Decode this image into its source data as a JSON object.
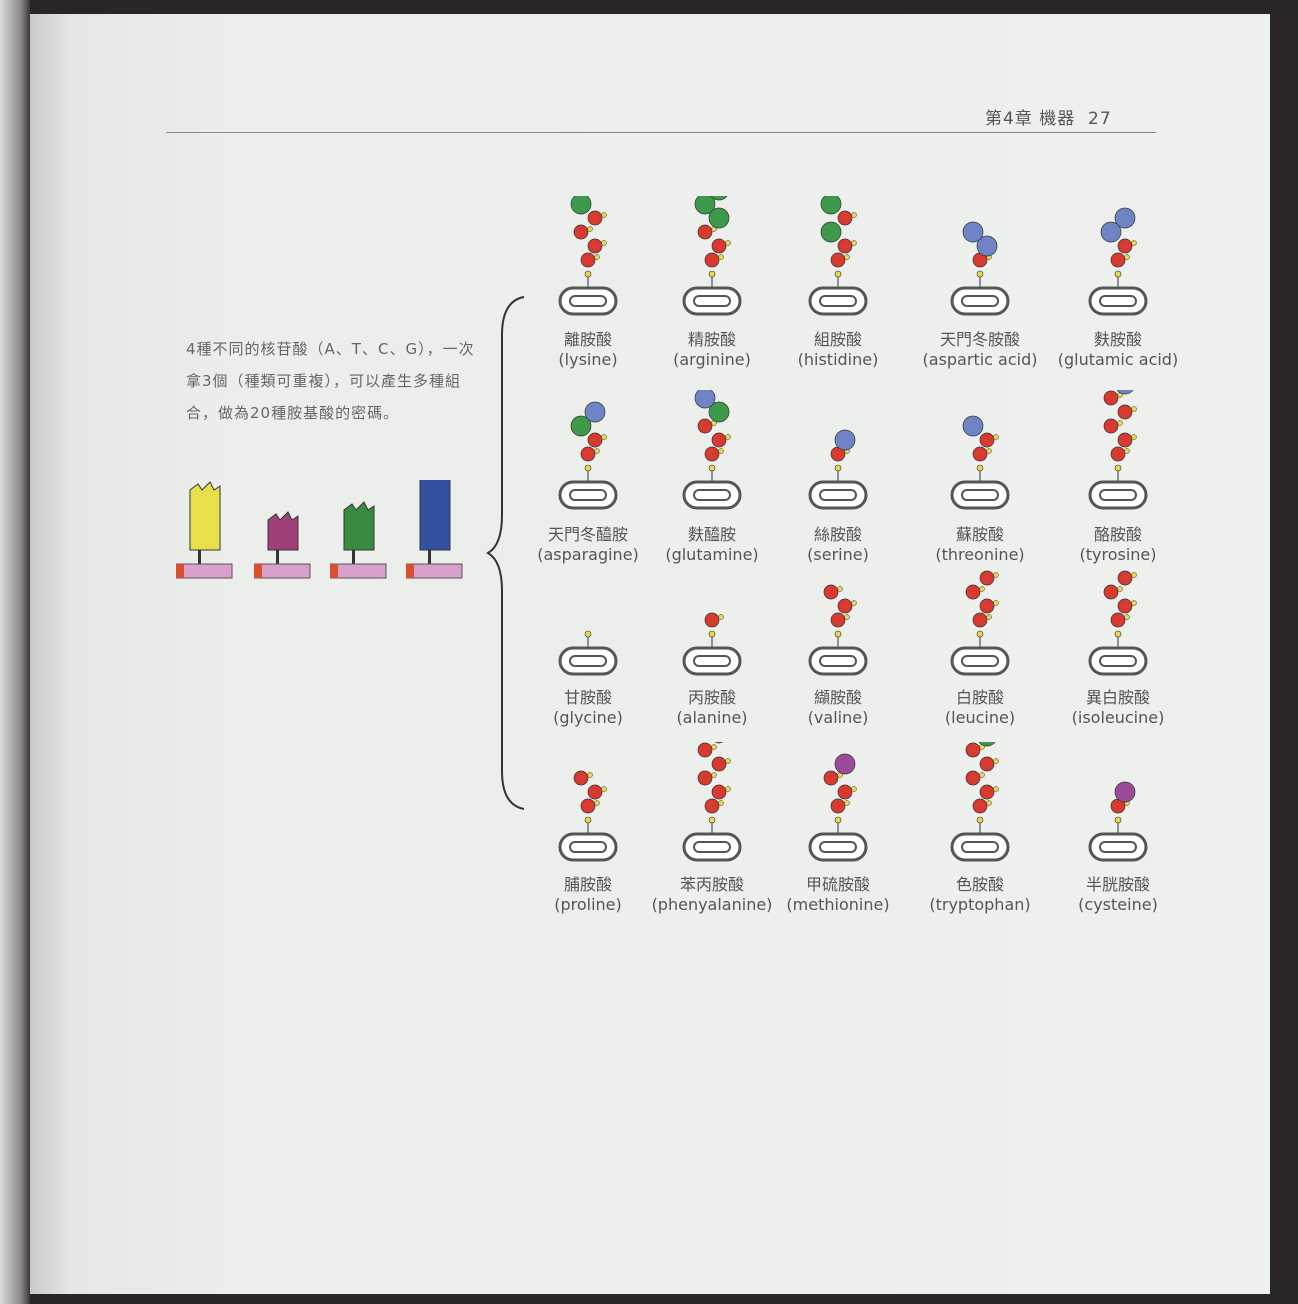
{
  "header": {
    "chapter": "第4章 機器",
    "page_number": "27"
  },
  "intro": "4種不同的核苷酸（A、T、C、G），一次拿3個（種類可重複），可以產生多種組合，做為20種胺基酸的密碼。",
  "colors": {
    "red": "#d83a30",
    "green": "#3d9a4a",
    "blue": "#6f84c4",
    "purple": "#9c4a9a",
    "yellow": "#e8d84a",
    "ring": "#555555"
  },
  "nucleotides": [
    {
      "color": "#e8e04a"
    },
    {
      "color": "#a0407a"
    },
    {
      "color": "#3a8a40"
    },
    {
      "color": "#3450a0"
    }
  ],
  "amino_acids": [
    {
      "zh": "離胺酸",
      "en": "(lysine)",
      "chain": [
        "red",
        "red",
        "red",
        "red",
        "green"
      ]
    },
    {
      "zh": "精胺酸",
      "en": "(arginine)",
      "chain": [
        "red",
        "red",
        "red",
        "green",
        "green",
        "green"
      ]
    },
    {
      "zh": "組胺酸",
      "en": "(histidine)",
      "chain": [
        "red",
        "red",
        "green",
        "red",
        "green"
      ]
    },
    {
      "zh": "天門冬胺酸",
      "en": "(aspartic acid)",
      "chain": [
        "red",
        "blue",
        "blue"
      ]
    },
    {
      "zh": "麩胺酸",
      "en": "(glutamic acid)",
      "chain": [
        "red",
        "red",
        "blue",
        "blue"
      ]
    },
    {
      "zh": "天門冬醯胺",
      "en": "(asparagine)",
      "chain": [
        "red",
        "red",
        "green",
        "blue"
      ]
    },
    {
      "zh": "麩醯胺",
      "en": "(glutamine)",
      "chain": [
        "red",
        "red",
        "red",
        "green",
        "blue"
      ]
    },
    {
      "zh": "絲胺酸",
      "en": "(serine)",
      "chain": [
        "red",
        "blue"
      ]
    },
    {
      "zh": "蘇胺酸",
      "en": "(threonine)",
      "chain": [
        "red",
        "red",
        "blue"
      ]
    },
    {
      "zh": "酪胺酸",
      "en": "(tyrosine)",
      "chain": [
        "red",
        "red",
        "red",
        "red",
        "red",
        "blue"
      ]
    },
    {
      "zh": "甘胺酸",
      "en": "(glycine)",
      "chain": []
    },
    {
      "zh": "丙胺酸",
      "en": "(alanine)",
      "chain": [
        "red"
      ]
    },
    {
      "zh": "纈胺酸",
      "en": "(valine)",
      "chain": [
        "red",
        "red",
        "red"
      ]
    },
    {
      "zh": "白胺酸",
      "en": "(leucine)",
      "chain": [
        "red",
        "red",
        "red",
        "red"
      ]
    },
    {
      "zh": "異白胺酸",
      "en": "(isoleucine)",
      "chain": [
        "red",
        "red",
        "red",
        "red"
      ]
    },
    {
      "zh": "脯胺酸",
      "en": "(proline)",
      "chain": [
        "red",
        "red",
        "red"
      ]
    },
    {
      "zh": "苯丙胺酸",
      "en": "(phenyalanine)",
      "chain": [
        "red",
        "red",
        "red",
        "red",
        "red",
        "red"
      ]
    },
    {
      "zh": "甲硫胺酸",
      "en": "(methionine)",
      "chain": [
        "red",
        "red",
        "red",
        "purple"
      ]
    },
    {
      "zh": "色胺酸",
      "en": "(tryptophan)",
      "chain": [
        "red",
        "red",
        "red",
        "red",
        "red",
        "green",
        "red"
      ]
    },
    {
      "zh": "半胱胺酸",
      "en": "(cysteine)",
      "chain": [
        "red",
        "purple"
      ]
    }
  ]
}
